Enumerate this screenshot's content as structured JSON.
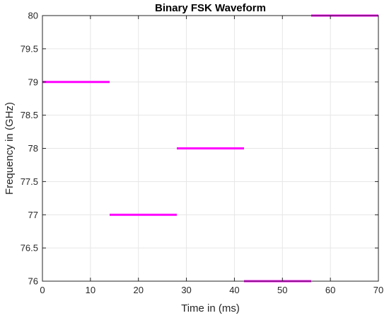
{
  "chart_data": {
    "type": "line",
    "title": "Binary FSK Waveform",
    "xlabel": "Time in (ms)",
    "ylabel": "Frequency in (GHz)",
    "xlim": [
      0,
      70
    ],
    "ylim": [
      76,
      80
    ],
    "xticks": [
      0,
      10,
      20,
      30,
      40,
      50,
      60,
      70
    ],
    "yticks": [
      76,
      76.5,
      77,
      77.5,
      78,
      78.5,
      79,
      79.5,
      80
    ],
    "xtick_labels": [
      "0",
      "10",
      "20",
      "30",
      "40",
      "50",
      "60",
      "70"
    ],
    "ytick_labels": [
      "76",
      "76.5",
      "77",
      "77.5",
      "78",
      "78.5",
      "79",
      "79.5",
      "80"
    ],
    "grid": true,
    "color": "#ff00ff",
    "segments": [
      {
        "x": [
          0,
          14
        ],
        "y": 79
      },
      {
        "x": [
          14,
          28
        ],
        "y": 77
      },
      {
        "x": [
          28,
          42
        ],
        "y": 78
      },
      {
        "x": [
          42,
          56
        ],
        "y": 76
      },
      {
        "x": [
          56,
          70
        ],
        "y": 80
      }
    ]
  }
}
